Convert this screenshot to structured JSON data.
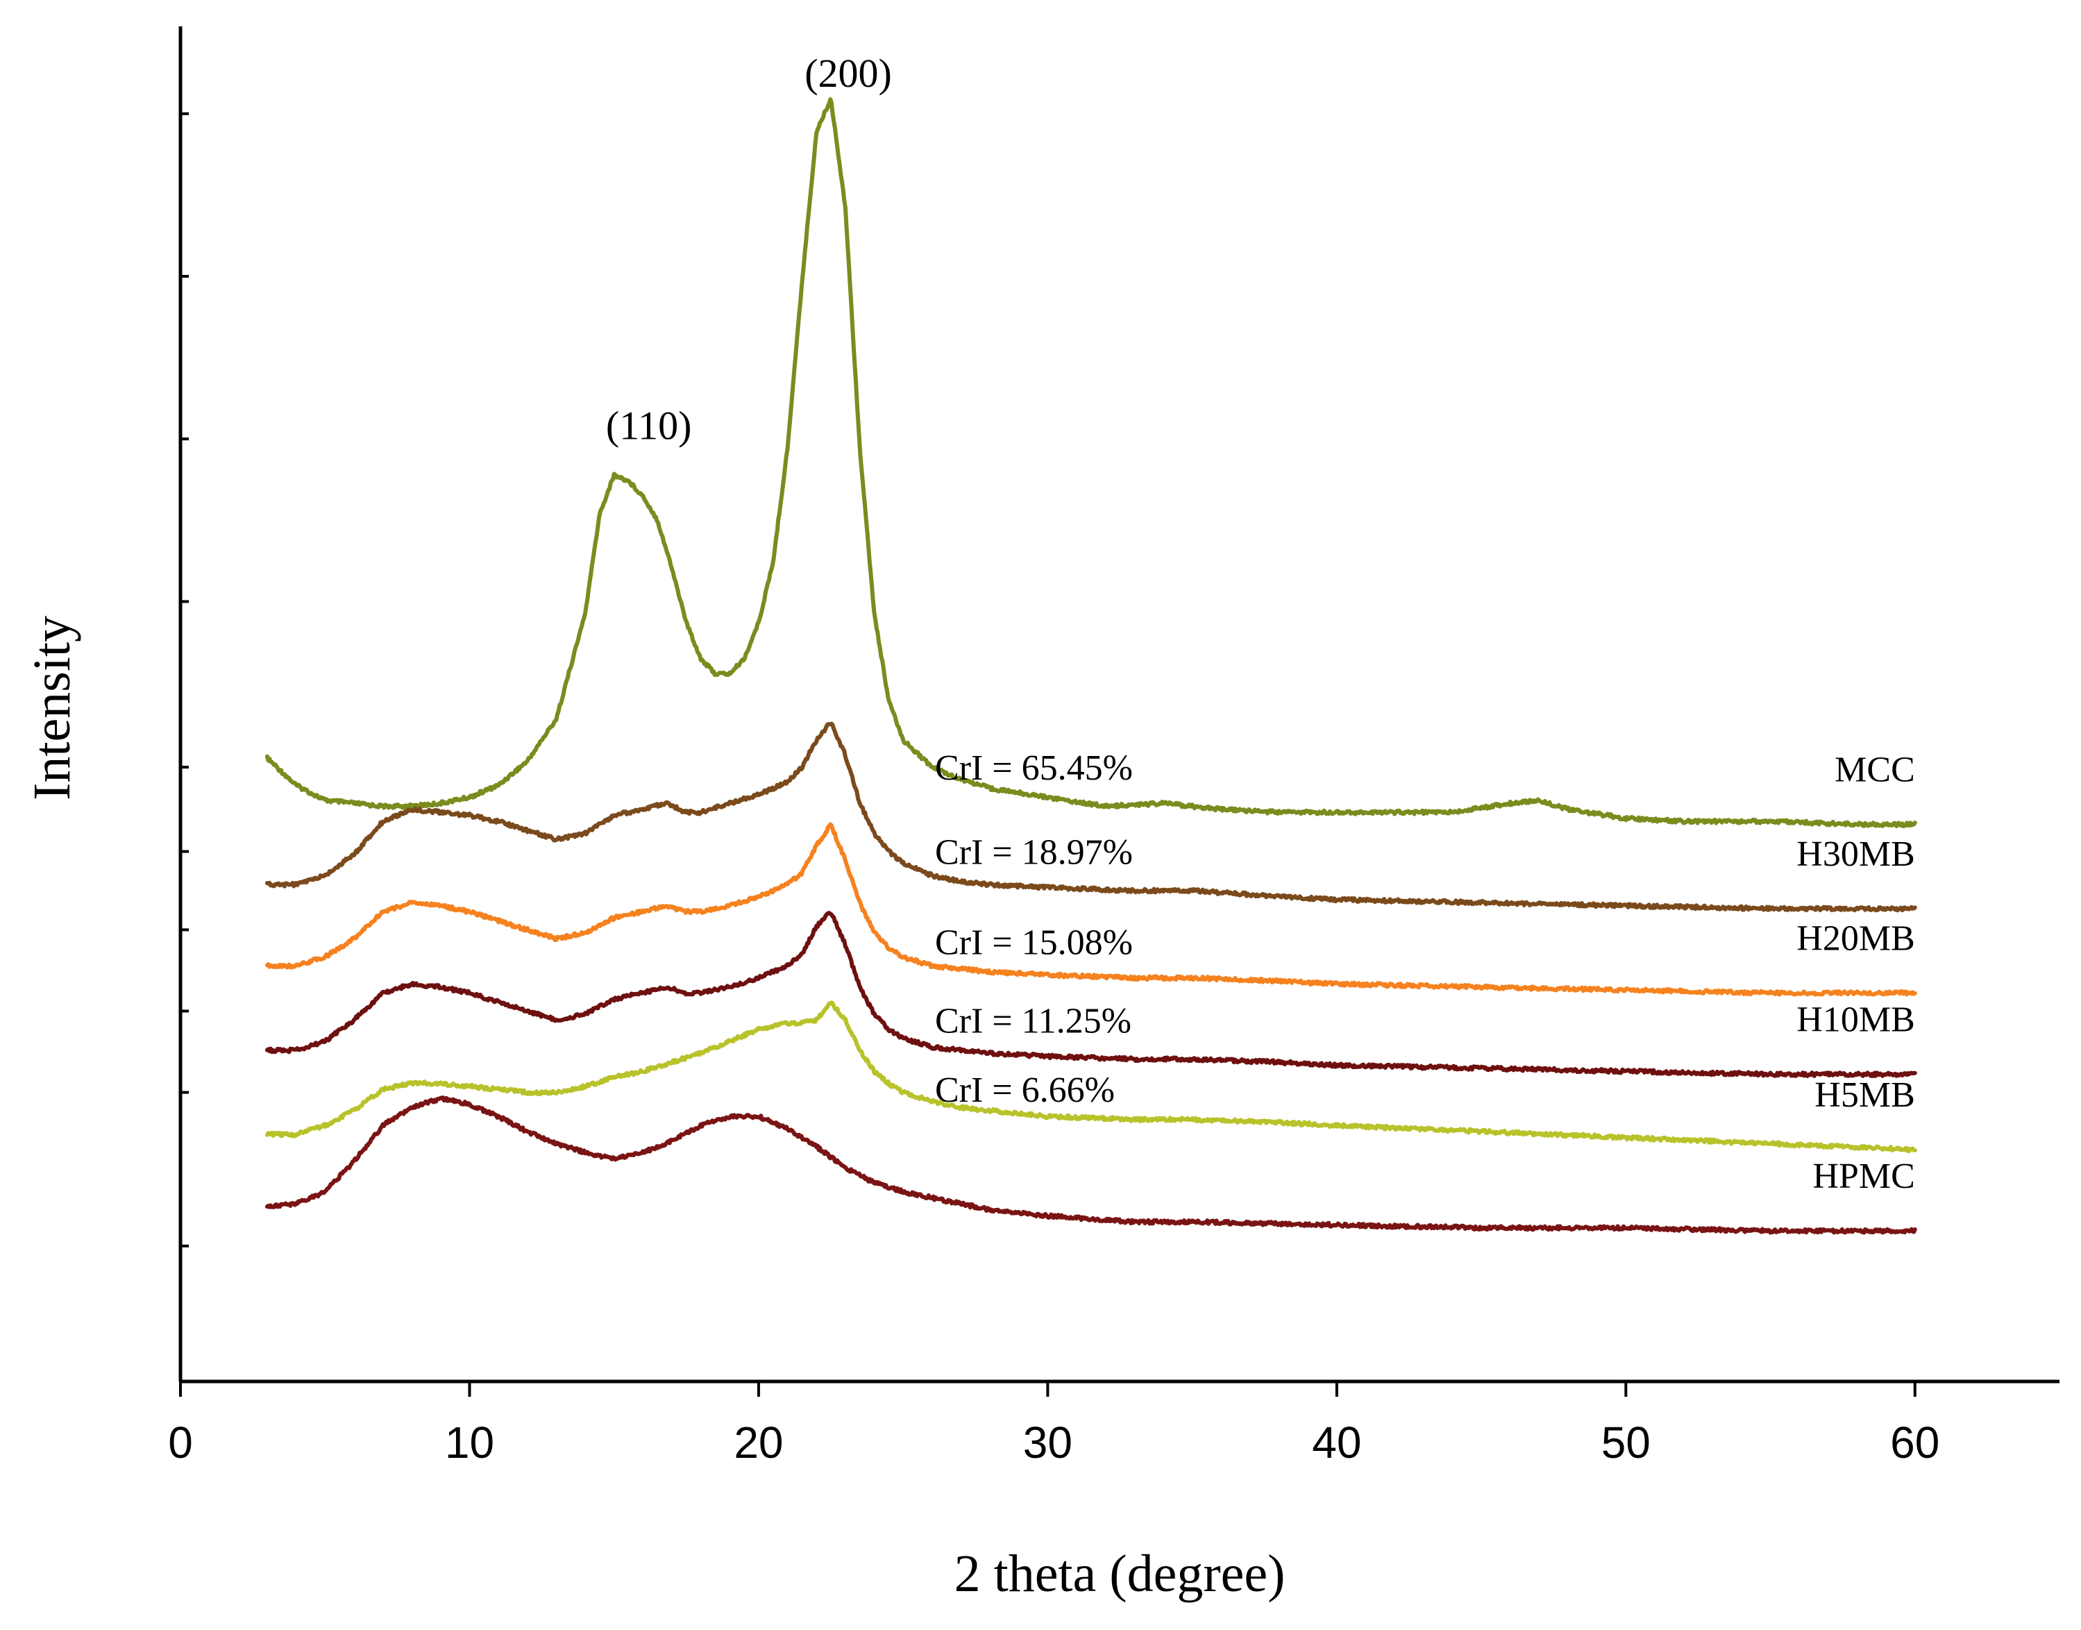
{
  "chart_data": {
    "type": "line",
    "title": "",
    "xlabel": "2 theta (degree)",
    "ylabel": "Intensity",
    "xlim": [
      0,
      65
    ],
    "ylim": [
      0,
      45
    ],
    "xticks": [
      0,
      10,
      20,
      30,
      40,
      50,
      60
    ],
    "xtick_labels": [
      "0",
      "10",
      "20",
      "30",
      "40",
      "50",
      "60"
    ],
    "y_minor_ticks": [
      4.5,
      9.6,
      12.3,
      15,
      17.6,
      20.4,
      25.9,
      31.3,
      36.7,
      42.1
    ],
    "grid": false,
    "legend": "none (series labelled at right end of each trace)",
    "peak_labels": [
      {
        "text": "(110)",
        "x": 16.2,
        "y": 31.3
      },
      {
        "text": "(200)",
        "x": 23.1,
        "y": 43.0
      }
    ],
    "series": [
      {
        "name": "MCC",
        "color": "#7a8c1e",
        "crystallinity": "CrI = 65.45%",
        "x": [
          3,
          4,
          5,
          6,
          7,
          8,
          9,
          10,
          11,
          12,
          13,
          14,
          14.5,
          15,
          15.5,
          16,
          16.5,
          17,
          17.5,
          18,
          18.5,
          19,
          19.5,
          20,
          20.5,
          21,
          21.5,
          22,
          22.5,
          23,
          23.5,
          24,
          24.5,
          25,
          26,
          27,
          28,
          30,
          32,
          34,
          36,
          38,
          40,
          42,
          44,
          46,
          47,
          48,
          50,
          52,
          55,
          58,
          60
        ],
        "y": [
          20.7,
          19.8,
          19.3,
          19.2,
          19.1,
          19.1,
          19.2,
          19.4,
          19.8,
          20.6,
          22.0,
          25.5,
          28.8,
          30.1,
          29.9,
          29.4,
          28.6,
          27.0,
          25.2,
          24.0,
          23.5,
          23.5,
          24.0,
          25.2,
          27.2,
          31.0,
          36.5,
          41.5,
          42.6,
          39.0,
          31.0,
          25.5,
          22.6,
          21.3,
          20.4,
          20.0,
          19.7,
          19.4,
          19.1,
          19.2,
          19.0,
          18.9,
          18.9,
          18.9,
          18.9,
          19.2,
          19.3,
          19.0,
          18.7,
          18.6,
          18.6,
          18.5,
          18.5
        ],
        "label_x": 60,
        "anno_x": 26.1,
        "anno_y": 20.4
      },
      {
        "name": "H30MB",
        "color": "#7b4a1c",
        "crystallinity": "CrI = 18.97%",
        "x": [
          3,
          4,
          5,
          6,
          7,
          8,
          9,
          10,
          11,
          12,
          13,
          14,
          15,
          16,
          16.8,
          17.5,
          18,
          19,
          20,
          21,
          21.5,
          22,
          22.5,
          23,
          23.5,
          24,
          24.5,
          25,
          26,
          27,
          28,
          30,
          33,
          35,
          38,
          40,
          45,
          50,
          55,
          60
        ],
        "y": [
          16.5,
          16.5,
          16.8,
          17.5,
          18.6,
          19.0,
          18.9,
          18.8,
          18.6,
          18.3,
          18.0,
          18.2,
          18.8,
          19.0,
          19.2,
          18.9,
          18.9,
          19.2,
          19.5,
          19.9,
          20.4,
          21.3,
          21.9,
          20.8,
          19.2,
          18.2,
          17.6,
          17.2,
          16.8,
          16.6,
          16.5,
          16.4,
          16.3,
          16.3,
          16.1,
          16.0,
          15.9,
          15.8,
          15.7,
          15.7
        ],
        "label_x": 60,
        "anno_x": 26.1,
        "anno_y": 17.6
      },
      {
        "name": "H20MB",
        "color": "#f5821f",
        "crystallinity": "CrI = 15.08%",
        "x": [
          3,
          4,
          5,
          6,
          7,
          8,
          9,
          10,
          11,
          12,
          13,
          14,
          15,
          16,
          16.8,
          17.5,
          18,
          19,
          20,
          21,
          21.5,
          22,
          22.5,
          23,
          23.5,
          24,
          24.5,
          25,
          26,
          27,
          28,
          30,
          33,
          35,
          38,
          40,
          45,
          50,
          55,
          60
        ],
        "y": [
          13.8,
          13.8,
          14.1,
          14.7,
          15.6,
          15.9,
          15.8,
          15.6,
          15.3,
          15.0,
          14.7,
          14.9,
          15.4,
          15.6,
          15.8,
          15.6,
          15.6,
          15.8,
          16.1,
          16.5,
          16.9,
          17.8,
          18.5,
          17.3,
          15.9,
          14.9,
          14.4,
          14.1,
          13.8,
          13.7,
          13.6,
          13.5,
          13.4,
          13.4,
          13.3,
          13.2,
          13.1,
          13.0,
          12.9,
          12.9
        ],
        "label_x": 60,
        "anno_x": 26.1,
        "anno_y": 14.6
      },
      {
        "name": "H10MB",
        "color": "#6e1010",
        "crystallinity": "CrI = 11.25%",
        "x": [
          3,
          4,
          5,
          6,
          7,
          8,
          9,
          10,
          11,
          12,
          13,
          14,
          15,
          16,
          16.8,
          17.5,
          18,
          19,
          20,
          21,
          21.5,
          22,
          22.5,
          23,
          23.5,
          24,
          24.5,
          25,
          26,
          27,
          28,
          30,
          33,
          35,
          38,
          40,
          45,
          50,
          55,
          60
        ],
        "y": [
          11.0,
          11.0,
          11.3,
          12.0,
          12.9,
          13.2,
          13.1,
          12.9,
          12.6,
          12.3,
          12.0,
          12.2,
          12.7,
          12.9,
          13.1,
          12.9,
          12.9,
          13.1,
          13.4,
          13.8,
          14.2,
          15.1,
          15.6,
          14.5,
          13.1,
          12.2,
          11.7,
          11.4,
          11.1,
          11.0,
          10.9,
          10.8,
          10.7,
          10.7,
          10.6,
          10.5,
          10.4,
          10.3,
          10.2,
          10.2
        ],
        "label_x": 60,
        "anno_x": 26.1,
        "anno_y": 12.0
      },
      {
        "name": "H5MB",
        "color": "#b8c22a",
        "crystallinity": "CrI = 6.66%",
        "x": [
          3,
          4,
          5,
          6,
          7,
          8,
          9,
          10,
          11,
          12,
          13,
          14,
          15,
          16,
          17,
          18,
          19,
          20,
          21,
          21.5,
          22,
          22.5,
          23,
          23.5,
          24,
          24.5,
          25,
          26,
          27,
          28,
          30,
          33,
          35,
          38,
          40,
          45,
          50,
          55,
          60
        ],
        "y": [
          8.2,
          8.2,
          8.5,
          9.0,
          9.7,
          9.9,
          9.9,
          9.8,
          9.7,
          9.6,
          9.6,
          9.8,
          10.1,
          10.3,
          10.6,
          10.9,
          11.3,
          11.7,
          11.9,
          11.9,
          12.0,
          12.6,
          12.0,
          11.0,
          10.3,
          9.9,
          9.6,
          9.3,
          9.1,
          9.0,
          8.8,
          8.7,
          8.7,
          8.6,
          8.5,
          8.3,
          8.1,
          7.9,
          7.7
        ],
        "label_x": 60,
        "anno_x": 26.1,
        "anno_y": 9.7
      },
      {
        "name": "HPMC",
        "color": "#7a1414",
        "crystallinity": "",
        "x": [
          3,
          4,
          5,
          6,
          7,
          8,
          9,
          10,
          11,
          12,
          13,
          14,
          15,
          16,
          17,
          18,
          19,
          20,
          21,
          22,
          23,
          24,
          25,
          26,
          27,
          28,
          30,
          33,
          35,
          40,
          45,
          50,
          55,
          60
        ],
        "y": [
          5.8,
          5.9,
          6.3,
          7.3,
          8.5,
          9.1,
          9.4,
          9.2,
          8.8,
          8.3,
          7.9,
          7.6,
          7.4,
          7.6,
          8.0,
          8.5,
          8.8,
          8.8,
          8.4,
          7.8,
          7.1,
          6.6,
          6.3,
          6.1,
          5.9,
          5.7,
          5.5,
          5.3,
          5.3,
          5.2,
          5.1,
          5.1,
          5.0,
          5.0
        ],
        "label_x": 60,
        "anno_x": null,
        "anno_y": null
      }
    ]
  }
}
